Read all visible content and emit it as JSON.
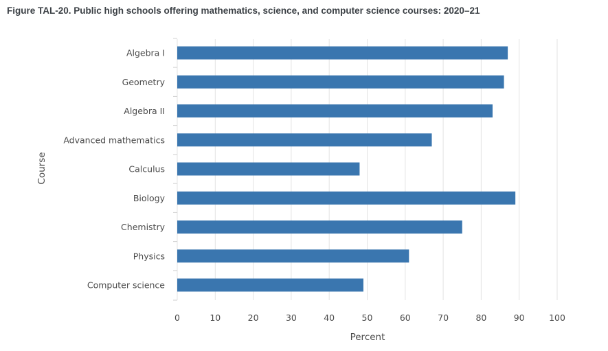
{
  "chart_data": {
    "type": "bar",
    "orientation": "horizontal",
    "title": "Figure TAL-20. Public high schools offering mathematics, science, and computer science courses: 2020–21",
    "xlabel": "Percent",
    "ylabel": "Course",
    "xlim": [
      0,
      100
    ],
    "xticks": [
      0,
      10,
      20,
      30,
      40,
      50,
      60,
      70,
      80,
      90,
      100
    ],
    "grid": true,
    "bar_color": "#3a76af",
    "grid_color": "#e3e3e3",
    "categories": [
      "Algebra I",
      "Geometry",
      "Algebra II",
      "Advanced mathematics",
      "Calculus",
      "Biology",
      "Chemistry",
      "Physics",
      "Computer science"
    ],
    "values": [
      87,
      86,
      83,
      67,
      48,
      89,
      75,
      61,
      49
    ]
  }
}
